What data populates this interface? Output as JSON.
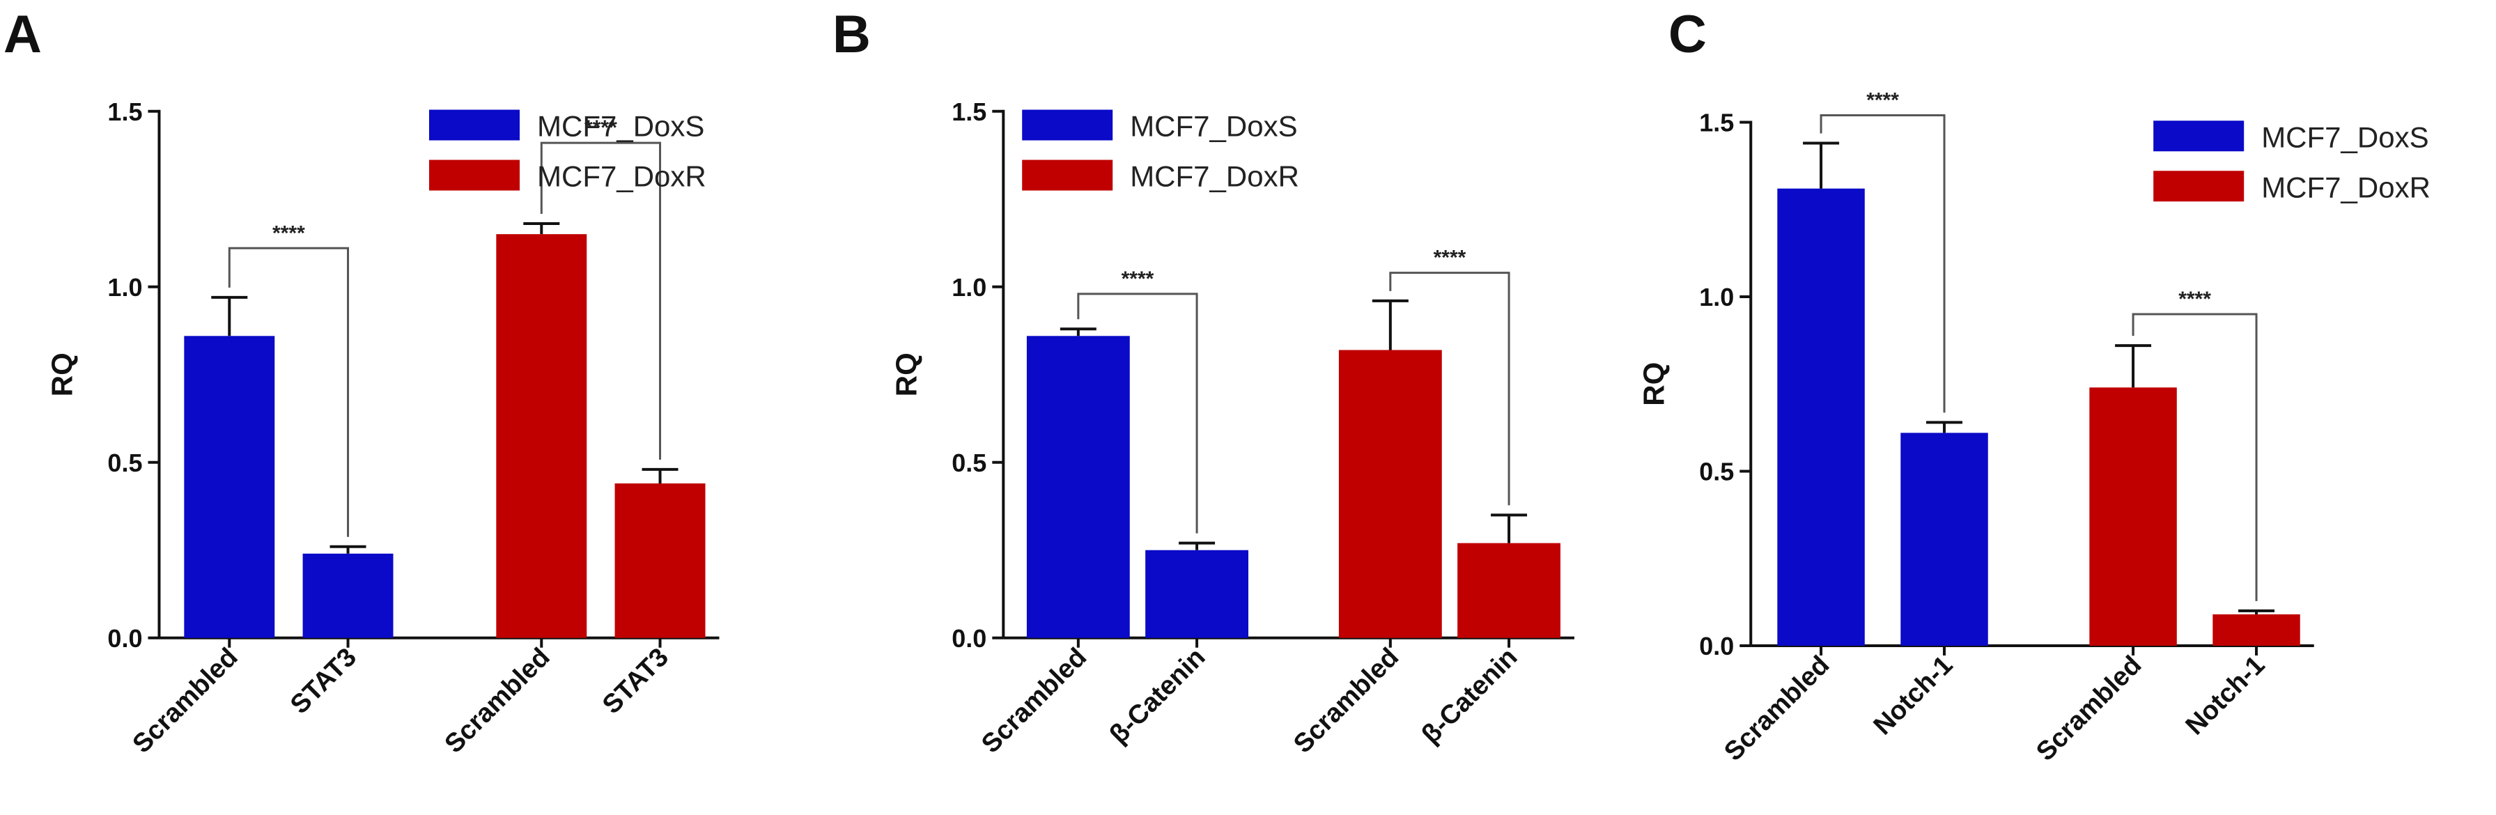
{
  "colors": {
    "doxs": "#0a0ac8",
    "doxr": "#c00000",
    "axis": "#111111"
  },
  "chart_data": [
    {
      "type": "bar",
      "panel": "A",
      "ylabel": "RQ",
      "ylim": [
        0,
        1.5
      ],
      "yticks": [
        "0.0",
        "0.5",
        "1.0",
        "1.5"
      ],
      "legend": {
        "position": "top-left",
        "entries": [
          "MCF7_DoxS",
          "MCF7_DoxR"
        ]
      },
      "categories": [
        "Scrambled",
        "STAT3",
        "Scrambled",
        "STAT3"
      ],
      "groups": [
        "MCF7_DoxS",
        "MCF7_DoxS",
        "MCF7_DoxR",
        "MCF7_DoxR"
      ],
      "values": [
        0.86,
        0.24,
        1.15,
        0.44
      ],
      "errors": [
        0.11,
        0.02,
        0.03,
        0.04
      ],
      "significance": [
        {
          "from": 0,
          "to": 1,
          "label": "****",
          "y": 1.11
        },
        {
          "from": 2,
          "to": 3,
          "label": "****",
          "y": 1.41
        }
      ]
    },
    {
      "type": "bar",
      "panel": "B",
      "ylabel": "RQ",
      "ylim": [
        0,
        1.5
      ],
      "yticks": [
        "0.0",
        "0.5",
        "1.0",
        "1.5"
      ],
      "legend": {
        "position": "top-left",
        "entries": [
          "MCF7_DoxS",
          "MCF7_DoxR"
        ]
      },
      "categories": [
        "Scrambled",
        "β-Catenin",
        "Scrambled",
        "β-Catenin"
      ],
      "groups": [
        "MCF7_DoxS",
        "MCF7_DoxS",
        "MCF7_DoxR",
        "MCF7_DoxR"
      ],
      "values": [
        0.86,
        0.25,
        0.82,
        0.27
      ],
      "errors": [
        0.02,
        0.02,
        0.14,
        0.08
      ],
      "significance": [
        {
          "from": 0,
          "to": 1,
          "label": "****",
          "y": 0.98
        },
        {
          "from": 2,
          "to": 3,
          "label": "****",
          "y": 1.04
        }
      ]
    },
    {
      "type": "bar",
      "panel": "C",
      "ylabel": "RQ",
      "ylim": [
        0,
        1.5
      ],
      "yticks": [
        "0.0",
        "0.5",
        "1.0",
        "1.5"
      ],
      "legend": {
        "position": "top-right",
        "entries": [
          "MCF7_DoxS",
          "MCF7_DoxR"
        ]
      },
      "categories": [
        "Scrambled",
        "Notch-1",
        "Scrambled",
        "Notch-1"
      ],
      "groups": [
        "MCF7_DoxS",
        "MCF7_DoxS",
        "MCF7_DoxR",
        "MCF7_DoxR"
      ],
      "values": [
        1.31,
        0.61,
        0.74,
        0.09
      ],
      "errors": [
        0.13,
        0.03,
        0.12,
        0.01
      ],
      "significance": [
        {
          "from": 0,
          "to": 1,
          "label": "****",
          "y": 1.52
        },
        {
          "from": 2,
          "to": 3,
          "label": "****",
          "y": 0.95
        }
      ]
    }
  ]
}
